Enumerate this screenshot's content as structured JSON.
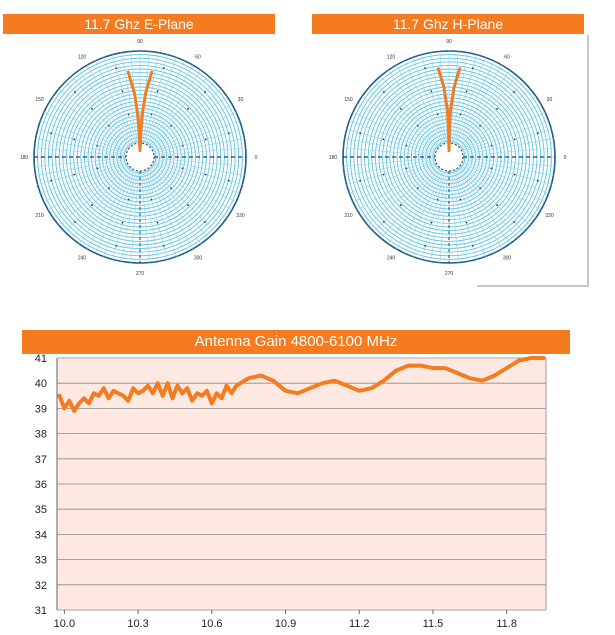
{
  "chart_data": [
    {
      "type": "polar",
      "title": "11.7 Ghz E-Plane",
      "angle_labels": [
        "0",
        "30",
        "60",
        "90",
        "120",
        "150",
        "180",
        "210",
        "240",
        "270",
        "300",
        "330"
      ],
      "series": [
        {
          "color": "#f47b20",
          "points": [
            [
              82,
              0.82
            ],
            [
              85,
              0.6
            ],
            [
              87,
              0.4
            ],
            [
              88,
              0.22
            ],
            [
              90,
              0.06
            ],
            [
              92,
              0.22
            ],
            [
              93,
              0.4
            ],
            [
              95,
              0.6
            ],
            [
              98,
              0.82
            ]
          ]
        }
      ]
    },
    {
      "type": "polar",
      "title": "11.7 Ghz H-Plane",
      "angle_labels": [
        "0",
        "30",
        "60",
        "90",
        "120",
        "150",
        "180",
        "210",
        "240",
        "270",
        "300",
        "330"
      ],
      "series": [
        {
          "color": "#f47b20",
          "points": [
            [
              83,
              0.85
            ],
            [
              86,
              0.65
            ],
            [
              88,
              0.45
            ],
            [
              89,
              0.28
            ],
            [
              90,
              0.06
            ],
            [
              91,
              0.28
            ],
            [
              92,
              0.45
            ],
            [
              94,
              0.65
            ],
            [
              97,
              0.85
            ]
          ]
        }
      ]
    },
    {
      "type": "line",
      "title": "Antenna Gain 4800-6100 MHz",
      "xlabel": "",
      "ylabel": "",
      "xlim": [
        9.97,
        11.96
      ],
      "ylim": [
        31,
        41
      ],
      "x_ticks": [
        "10.0",
        "10.3",
        "10.6",
        "10.9",
        "11.2",
        "11.5",
        "11.8"
      ],
      "y_ticks": [
        "31",
        "32",
        "33",
        "34",
        "35",
        "36",
        "37",
        "38",
        "39",
        "40",
        "41"
      ],
      "grid": true,
      "series": [
        {
          "color": "#f47b20",
          "x": [
            9.98,
            10.0,
            10.02,
            10.04,
            10.06,
            10.08,
            10.1,
            10.12,
            10.14,
            10.16,
            10.18,
            10.2,
            10.22,
            10.24,
            10.26,
            10.28,
            10.3,
            10.32,
            10.34,
            10.36,
            10.38,
            10.4,
            10.42,
            10.44,
            10.46,
            10.48,
            10.5,
            10.52,
            10.54,
            10.56,
            10.58,
            10.6,
            10.62,
            10.64,
            10.66,
            10.68,
            10.7,
            10.75,
            10.8,
            10.85,
            10.9,
            10.95,
            11.0,
            11.05,
            11.1,
            11.15,
            11.2,
            11.25,
            11.3,
            11.35,
            11.4,
            11.45,
            11.5,
            11.55,
            11.6,
            11.65,
            11.7,
            11.75,
            11.8,
            11.85,
            11.9,
            11.95
          ],
          "y": [
            39.5,
            39.0,
            39.3,
            38.9,
            39.2,
            39.4,
            39.2,
            39.6,
            39.5,
            39.8,
            39.4,
            39.7,
            39.6,
            39.5,
            39.3,
            39.8,
            39.6,
            39.7,
            39.9,
            39.6,
            40.0,
            39.5,
            40.0,
            39.4,
            39.9,
            39.6,
            39.8,
            39.3,
            39.6,
            39.5,
            39.7,
            39.2,
            39.6,
            39.4,
            39.9,
            39.6,
            39.9,
            40.2,
            40.3,
            40.1,
            39.7,
            39.6,
            39.8,
            40.0,
            40.1,
            39.9,
            39.7,
            39.8,
            40.1,
            40.5,
            40.7,
            40.7,
            40.6,
            40.6,
            40.4,
            40.2,
            40.1,
            40.3,
            40.6,
            40.9,
            41.0,
            41.0
          ]
        }
      ]
    }
  ]
}
